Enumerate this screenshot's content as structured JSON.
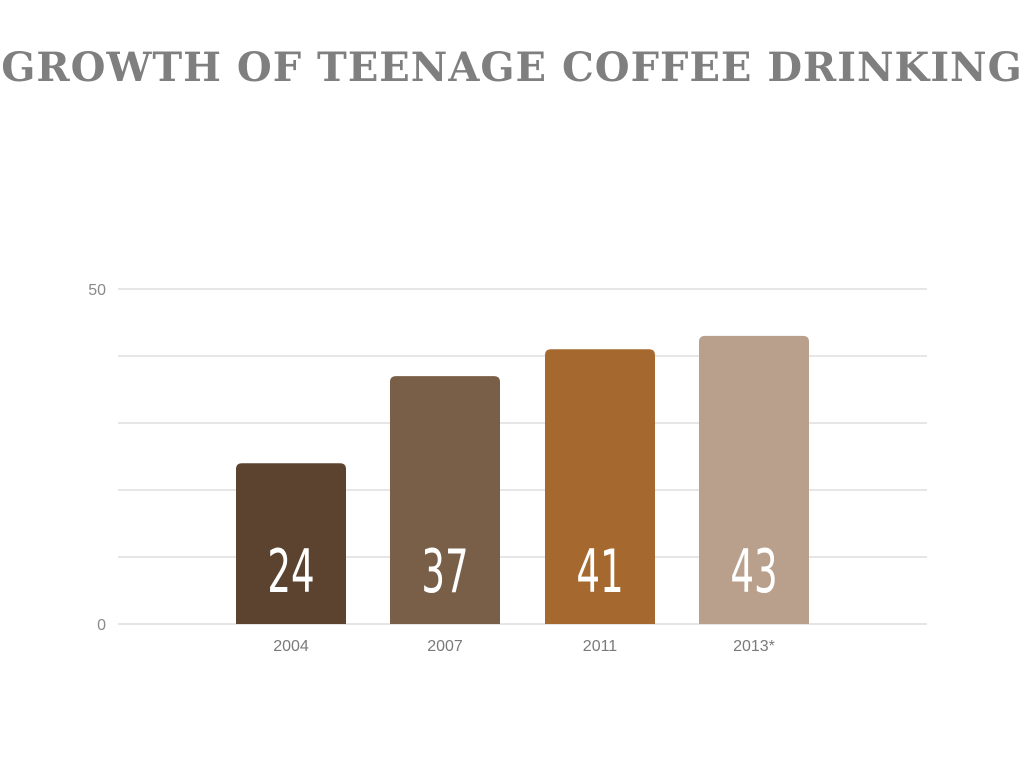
{
  "chart_data": {
    "type": "bar",
    "title": "GROWTH OF TEENAGE COFFEE DRINKING",
    "categories": [
      "2004",
      "2007",
      "2011",
      "2013*"
    ],
    "values": [
      24,
      37,
      41,
      43
    ],
    "data_labels": [
      "24",
      "37",
      "41",
      "43"
    ],
    "ylim": [
      0,
      50
    ],
    "y_ticks": [
      0,
      10,
      20,
      30,
      40,
      50
    ],
    "y_tick_labels": [
      "0",
      "",
      "",
      "",
      "",
      "50"
    ],
    "xlabel": "",
    "ylabel": "",
    "grid": true,
    "legend": "none",
    "colors": [
      "#5b4330",
      "#7a5f48",
      "#a5692f",
      "#b9a08c"
    ]
  }
}
